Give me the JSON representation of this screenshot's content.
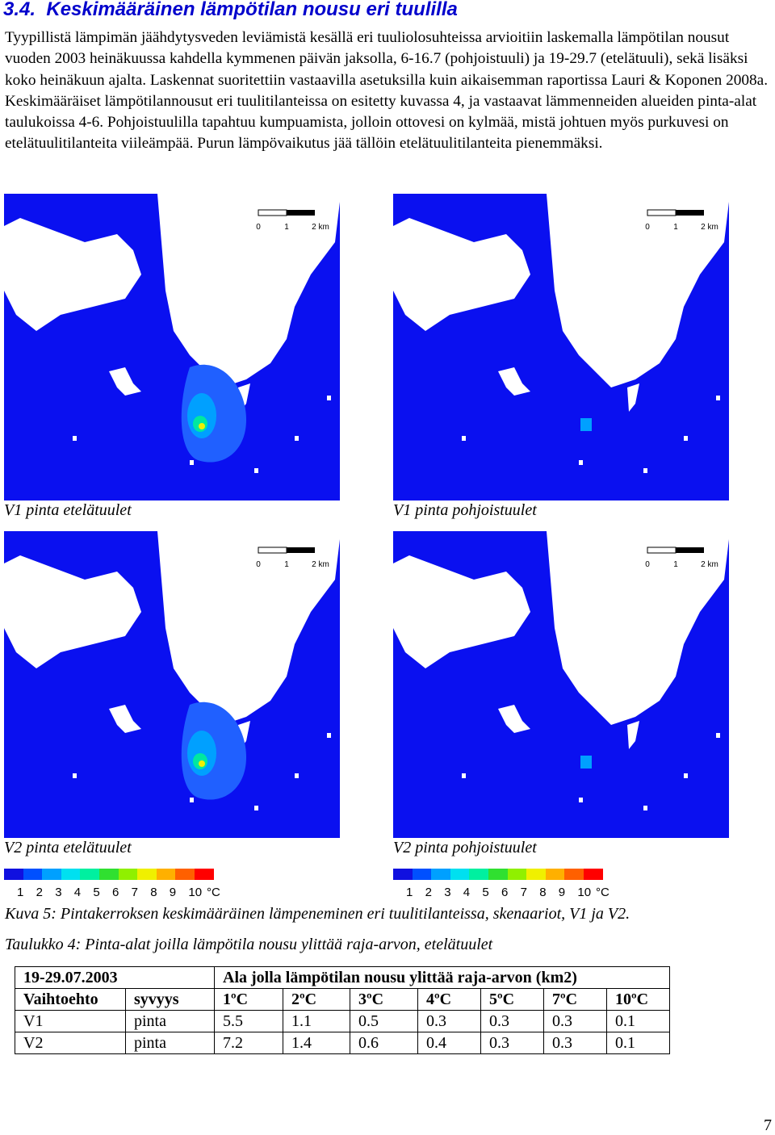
{
  "heading": {
    "number": "3.4.",
    "title": "Keskimääräinen lämpötilan nousu eri tuulilla"
  },
  "paragraph": "Tyypillistä lämpimän jäähdytysveden leviämistä kesällä eri tuuliolosuhteissa arvioitiin laskemalla lämpötilan nousut vuoden 2003 heinäkuussa kahdella kymmenen päivän jaksolla, 6-16.7 (pohjoistuuli) ja 19-29.7 (etelätuuli), sekä lisäksi koko heinäkuun ajalta. Laskennat suoritettiin vastaavilla asetuksilla kuin aikaisemman raportissa Lauri & Koponen 2008a. Keskimääräiset lämpötilannousut eri tuulitilanteissa on esitetty kuvassa 4, ja vastaavat lämmenneiden alueiden pinta-alat taulukoissa 4-6. Pohjoistuulilla tapahtuu kumpuamista, jolloin ottovesi on kylmää, mistä johtuen myös purkuvesi on etelätuulitilanteita viileämpää. Purun lämpövaikutus jää tällöin etelätuulitilanteita pienemmäksi.",
  "maps": [
    {
      "caption": "V1 pinta etelätuulet",
      "scale_labels": [
        "0",
        "1",
        "2 km"
      ]
    },
    {
      "caption": "V1 pinta pohjoistuulet",
      "scale_labels": [
        "0",
        "1",
        "2 km"
      ]
    },
    {
      "caption": "V2 pinta etelätuulet",
      "scale_labels": [
        "0",
        "1",
        "2 km"
      ]
    },
    {
      "caption": "V2 pinta pohjoistuulet",
      "scale_labels": [
        "0",
        "1",
        "2 km"
      ]
    }
  ],
  "legends": [
    {
      "labels": [
        "1",
        "2",
        "3",
        "4",
        "5",
        "6",
        "7",
        "8",
        "9",
        "10"
      ],
      "unit": "°C",
      "colors": [
        "#1010e0",
        "#0050ff",
        "#00a0ff",
        "#00e0f0",
        "#00f0a0",
        "#30e030",
        "#90f000",
        "#f0f000",
        "#ffb000",
        "#ff6000",
        "#ff0000"
      ]
    },
    {
      "labels": [
        "1",
        "2",
        "3",
        "4",
        "5",
        "6",
        "7",
        "8",
        "9",
        "10"
      ],
      "unit": "°C",
      "colors": [
        "#1010e0",
        "#0050ff",
        "#00a0ff",
        "#00e0f0",
        "#00f0a0",
        "#30e030",
        "#90f000",
        "#f0f000",
        "#ffb000",
        "#ff6000",
        "#ff0000"
      ]
    }
  ],
  "figure_caption": "Kuva 5: Pintakerroksen keskimääräinen lämpeneminen eri tuulitilanteissa, skenaariot, V1 ja V2.",
  "table_caption": "Taulukko 4: Pinta-alat joilla lämpötila nousu ylittää raja-arvon, etelätuulet",
  "table": {
    "header": [
      "19-29.07.2003",
      "Ala jolla lämpötilan nousu ylittää raja-arvon (km2)"
    ],
    "rows": [
      [
        "Vaihtoehto",
        "syvyys",
        "1ºC",
        "2ºC",
        "3ºC",
        "4ºC",
        "5ºC",
        "7ºC",
        "10ºC"
      ],
      [
        "V1",
        "pinta",
        "5.5",
        "1.1",
        "0.5",
        "0.3",
        "0.3",
        "0.3",
        "0.1"
      ],
      [
        "V2",
        "pinta",
        "7.2",
        "1.4",
        "0.6",
        "0.4",
        "0.3",
        "0.3",
        "0.1"
      ]
    ]
  },
  "page_number": "7"
}
